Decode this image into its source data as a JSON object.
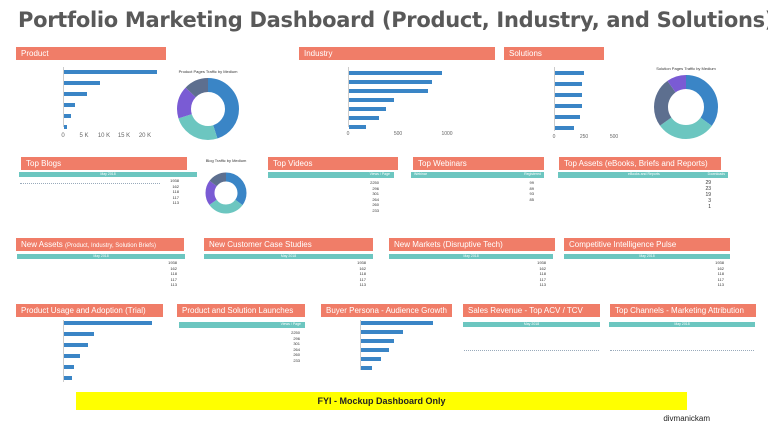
{
  "page": {
    "title": "Portfolio Marketing Dashboard (Product, Industry, and Solutions)"
  },
  "sections": {
    "product": "Product",
    "industry": "Industry",
    "solutions": "Solutions",
    "top_blogs": "Top Blogs",
    "top_videos": "Top Videos",
    "top_webinars": "Top Webinars",
    "top_assets": "Top Assets (eBooks, Briefs and Reports)",
    "new_assets": "New Assets",
    "new_assets_sub": "(Product, Industry, Solution Briefs)",
    "customer_case_studies": "New Customer Case Studies",
    "new_markets": "New Markets (Disruptive Tech)",
    "competitive_intel": "Competitive Intelligence Pulse",
    "product_usage": "Product Usage and Adoption (Trial)",
    "solution_launches": "Product and Solution Launches",
    "buyer_persona": "Buyer Persona - Audience Growth",
    "sales_revenue": "Sales Revenue - Top ACV / TCV",
    "top_channels": "Top Channels - Marketing Attribution"
  },
  "product_chart": {
    "ticks": [
      "0",
      "5 K",
      "10 K",
      "15 K",
      "20 K"
    ]
  },
  "industry_chart": {
    "ticks": [
      "0",
      "500",
      "1000"
    ]
  },
  "solutions_chart": {
    "ticks": [
      "0",
      "250",
      "500"
    ]
  },
  "donuts": {
    "product": {
      "title": "Product Pages Traffic by Medium"
    },
    "blog": {
      "title": "Blog Traffic by Medium"
    },
    "solution": {
      "title": "Solution Pages Traffic by Medium"
    }
  },
  "tables": {
    "may2018": "May 2018",
    "views_label": "Views / Page",
    "assets_header_left": "eBooks and Reports",
    "assets_header_right": "Downloads",
    "webinar_header_left": "Webinar",
    "webinar_header_right": "Registered",
    "blogs_values": [
      "1938",
      "162",
      "118",
      "117",
      "113"
    ],
    "videos_values": [
      "2250",
      "296",
      "301",
      "264",
      "260",
      "233"
    ],
    "webinars_values": [
      "99",
      "89",
      "93",
      "85"
    ],
    "assets_values": [
      "29",
      "23",
      "19",
      "3",
      "1"
    ],
    "new_assets_values": [
      "1938",
      "162",
      "118",
      "117",
      "113"
    ],
    "case_values": [
      "1938",
      "162",
      "118",
      "117",
      "113"
    ],
    "markets_values": [
      "1938",
      "162",
      "118",
      "117",
      "113"
    ],
    "competitive_values": [
      "1938",
      "162",
      "118",
      "117",
      "113"
    ],
    "launches_values": [
      "2250",
      "296",
      "301",
      "264",
      "260",
      "233"
    ]
  },
  "footer": {
    "fyi": "FYI - Mockup Dashboard Only",
    "credit": "divmanickam"
  },
  "colors": {
    "header": "#f07d68",
    "bar": "#3a85c6",
    "teal": "#6cc6c0",
    "purple": "#7a5bd4",
    "slate": "#5d6f8f",
    "fyi": "#ffff00"
  },
  "chart_data": [
    {
      "type": "bar",
      "name": "product",
      "values": [
        20500,
        8000,
        5000,
        2500,
        1500,
        500
      ],
      "xlim": [
        0,
        22000
      ]
    },
    {
      "type": "bar",
      "name": "industry",
      "values": [
        950,
        840,
        800,
        460,
        380,
        310,
        170
      ],
      "xlim": [
        0,
        1200
      ]
    },
    {
      "type": "bar",
      "name": "solutions",
      "values": [
        250,
        230,
        230,
        230,
        210,
        160
      ],
      "xlim": [
        0,
        600
      ]
    },
    {
      "type": "pie",
      "name": "product-donut",
      "values": [
        45,
        25,
        17,
        13
      ]
    },
    {
      "type": "pie",
      "name": "blog-donut",
      "values": [
        35,
        30,
        20,
        15
      ]
    },
    {
      "type": "pie",
      "name": "solution-donut",
      "values": [
        35,
        30,
        25,
        10
      ]
    }
  ]
}
